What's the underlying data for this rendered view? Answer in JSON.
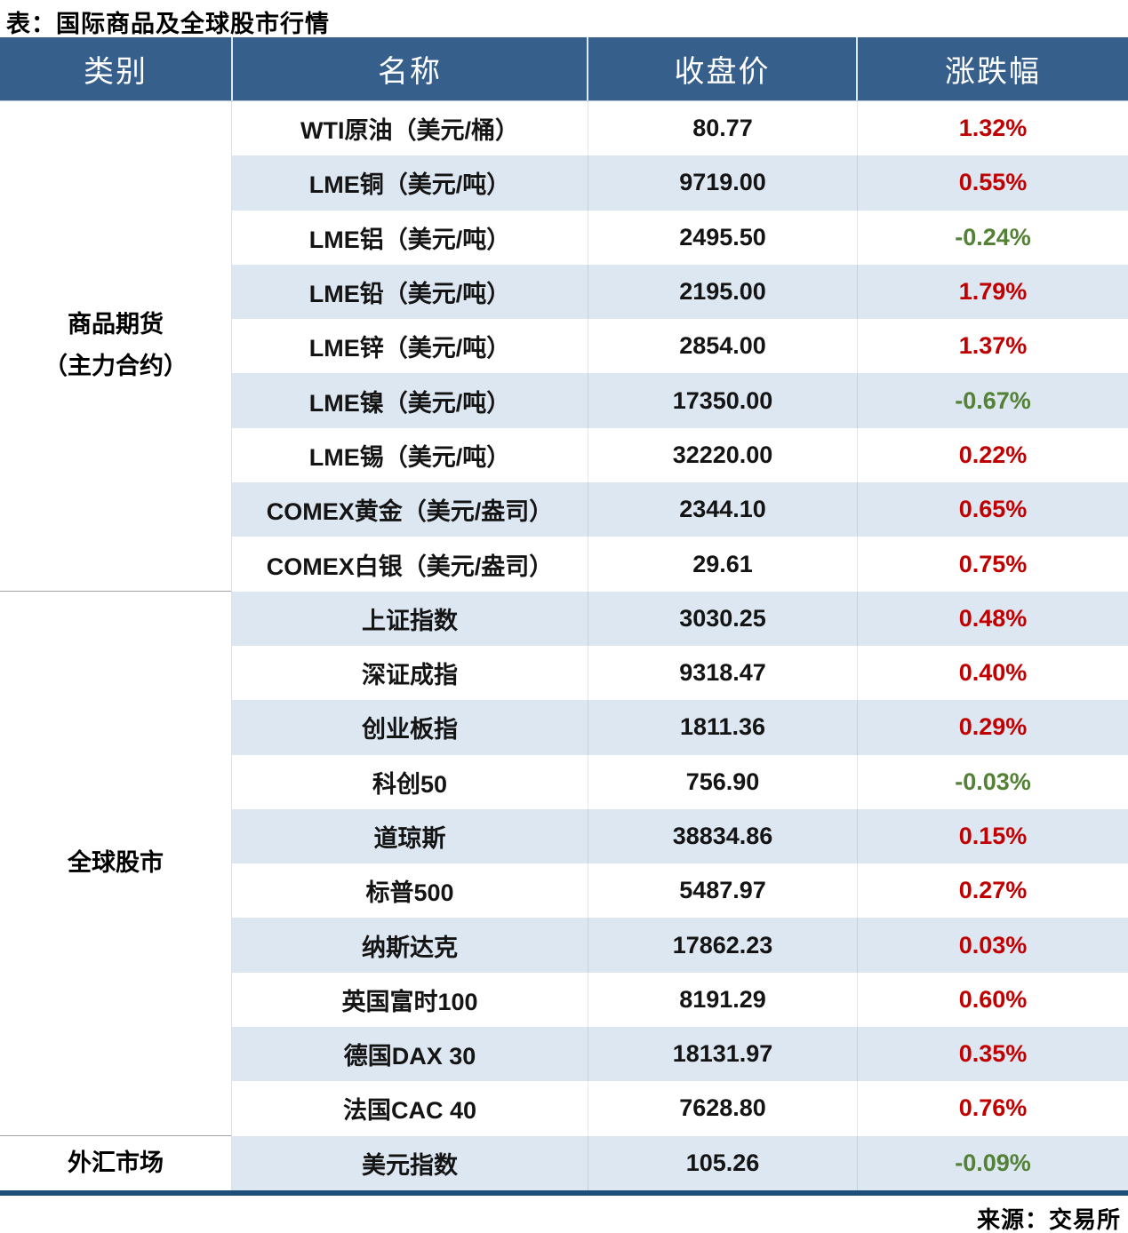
{
  "title": "表：国际商品及全球股市行情",
  "source": "来源：交易所",
  "colors": {
    "headerBg": "#365F8C",
    "headerRule": "#B9C5D6",
    "bandBg": "#DDE7F2",
    "up": "#C00000",
    "down": "#538135",
    "borderDark": "#1F4E79",
    "lineGray": "#9FA3A7"
  },
  "table": {
    "headers": [
      "类别",
      "名称",
      "收盘价",
      "涨跌幅"
    ],
    "categories": [
      {
        "label_lines": [
          "商品期货",
          "（主力合约）"
        ],
        "row_span": 9
      },
      {
        "label_lines": [
          "全球股市"
        ],
        "row_span": 10
      },
      {
        "label_lines": [
          "外汇市场"
        ],
        "row_span": 1
      }
    ],
    "rows": [
      {
        "name": "WTI原油（美元/桶）",
        "close": "80.77",
        "change": "1.32%"
      },
      {
        "name": "LME铜（美元/吨）",
        "close": "9719.00",
        "change": "0.55%"
      },
      {
        "name": "LME铝（美元/吨）",
        "close": "2495.50",
        "change": "-0.24%"
      },
      {
        "name": "LME铅（美元/吨）",
        "close": "2195.00",
        "change": "1.79%"
      },
      {
        "name": "LME锌（美元/吨）",
        "close": "2854.00",
        "change": "1.37%"
      },
      {
        "name": "LME镍（美元/吨）",
        "close": "17350.00",
        "change": "-0.67%"
      },
      {
        "name": "LME锡（美元/吨）",
        "close": "32220.00",
        "change": "0.22%"
      },
      {
        "name": "COMEX黄金（美元/盎司）",
        "close": "2344.10",
        "change": "0.65%"
      },
      {
        "name": "COMEX白银（美元/盎司）",
        "close": "29.61",
        "change": "0.75%"
      },
      {
        "name": "上证指数",
        "close": "3030.25",
        "change": "0.48%"
      },
      {
        "name": "深证成指",
        "close": "9318.47",
        "change": "0.40%"
      },
      {
        "name": "创业板指",
        "close": "1811.36",
        "change": "0.29%"
      },
      {
        "name": "科创50",
        "close": "756.90",
        "change": "-0.03%"
      },
      {
        "name": "道琼斯",
        "close": "38834.86",
        "change": "0.15%"
      },
      {
        "name": "标普500",
        "close": "5487.97",
        "change": "0.27%"
      },
      {
        "name": "纳斯达克",
        "close": "17862.23",
        "change": "0.03%"
      },
      {
        "name": "英国富时100",
        "close": "8191.29",
        "change": "0.60%"
      },
      {
        "name": "德国DAX 30",
        "close": "18131.97",
        "change": "0.35%"
      },
      {
        "name": "法国CAC 40",
        "close": "7628.80",
        "change": "0.76%"
      },
      {
        "name": "美元指数",
        "close": "105.26",
        "change": "-0.09%"
      }
    ]
  },
  "chart_data": {
    "type": "table",
    "title": "表：国际商品及全球股市行情",
    "source": "来源：交易所",
    "columns": [
      "类别",
      "名称",
      "收盘价",
      "涨跌幅"
    ],
    "rows": [
      [
        "商品期货（主力合约）",
        "WTI原油（美元/桶）",
        80.77,
        "1.32%"
      ],
      [
        "商品期货（主力合约）",
        "LME铜（美元/吨）",
        9719.0,
        "0.55%"
      ],
      [
        "商品期货（主力合约）",
        "LME铝（美元/吨）",
        2495.5,
        "-0.24%"
      ],
      [
        "商品期货（主力合约）",
        "LME铅（美元/吨）",
        2195.0,
        "1.79%"
      ],
      [
        "商品期货（主力合约）",
        "LME锌（美元/吨）",
        2854.0,
        "1.37%"
      ],
      [
        "商品期货（主力合约）",
        "LME镍（美元/吨）",
        17350.0,
        "-0.67%"
      ],
      [
        "商品期货（主力合约）",
        "LME锡（美元/吨）",
        32220.0,
        "0.22%"
      ],
      [
        "商品期货（主力合约）",
        "COMEX黄金（美元/盎司）",
        2344.1,
        "0.65%"
      ],
      [
        "商品期货（主力合约）",
        "COMEX白银（美元/盎司）",
        29.61,
        "0.75%"
      ],
      [
        "全球股市",
        "上证指数",
        3030.25,
        "0.48%"
      ],
      [
        "全球股市",
        "深证成指",
        9318.47,
        "0.40%"
      ],
      [
        "全球股市",
        "创业板指",
        1811.36,
        "0.29%"
      ],
      [
        "全球股市",
        "科创50",
        756.9,
        "-0.03%"
      ],
      [
        "全球股市",
        "道琼斯",
        38834.86,
        "0.15%"
      ],
      [
        "全球股市",
        "标普500",
        5487.97,
        "0.27%"
      ],
      [
        "全球股市",
        "纳斯达克",
        17862.23,
        "0.03%"
      ],
      [
        "全球股市",
        "英国富时100",
        8191.29,
        "0.60%"
      ],
      [
        "全球股市",
        "德国DAX 30",
        18131.97,
        "0.35%"
      ],
      [
        "全球股市",
        "法国CAC 40",
        7628.8,
        "0.76%"
      ],
      [
        "外汇市场",
        "美元指数",
        105.26,
        "-0.09%"
      ]
    ],
    "style_notes": {
      "positive_color_hex": "#C00000",
      "negative_color_hex": "#538135",
      "banding": "alternating white / light-blue rows"
    }
  }
}
